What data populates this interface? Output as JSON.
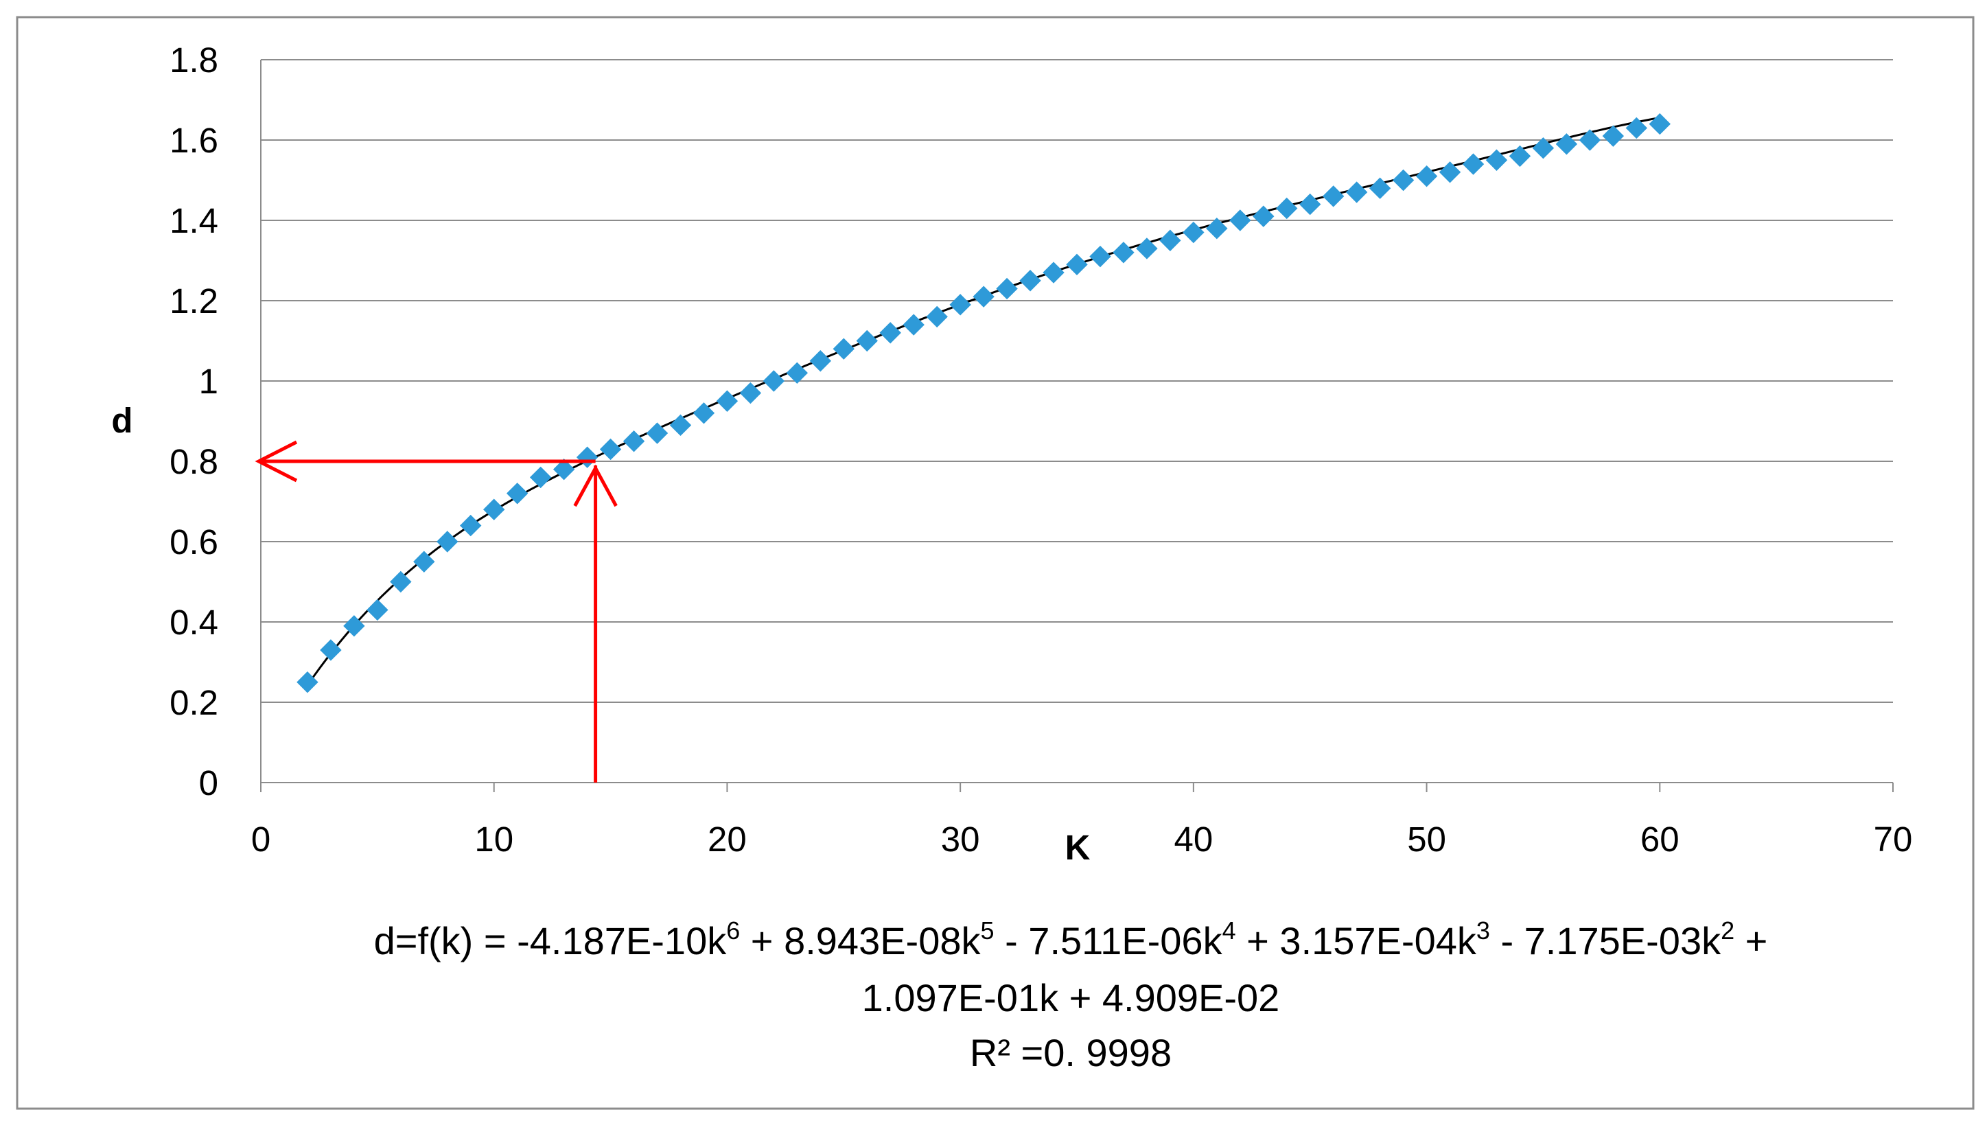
{
  "chart_data": {
    "type": "scatter",
    "title": "",
    "xlabel": "K",
    "ylabel": "d",
    "xlim": [
      0,
      70
    ],
    "ylim": [
      0,
      1.8
    ],
    "x_ticks": [
      "0",
      "10",
      "20",
      "30",
      "40",
      "50",
      "60",
      "70"
    ],
    "y_ticks": [
      "0",
      "0.2",
      "0.4",
      "0.6",
      "0.8",
      "1",
      "1.2",
      "1.4",
      "1.6",
      "1.8"
    ],
    "grid": true,
    "legend": "none",
    "series": [
      {
        "marker": "diamond",
        "color": "#2E9AD8",
        "x": [
          2,
          3,
          4,
          5,
          6,
          7,
          8,
          9,
          10,
          11,
          12,
          13,
          14,
          15,
          16,
          17,
          18,
          19,
          20,
          21,
          22,
          23,
          24,
          25,
          26,
          27,
          28,
          29,
          30,
          31,
          32,
          33,
          34,
          35,
          36,
          37,
          38,
          39,
          40,
          41,
          42,
          43,
          44,
          45,
          46,
          47,
          48,
          49,
          50,
          51,
          52,
          53,
          54,
          55,
          56,
          57,
          58,
          59,
          60
        ],
        "y": [
          0.25,
          0.33,
          0.39,
          0.43,
          0.5,
          0.55,
          0.6,
          0.64,
          0.68,
          0.72,
          0.76,
          0.78,
          0.81,
          0.83,
          0.85,
          0.87,
          0.89,
          0.92,
          0.95,
          0.97,
          1.0,
          1.02,
          1.05,
          1.08,
          1.1,
          1.12,
          1.14,
          1.16,
          1.19,
          1.21,
          1.23,
          1.25,
          1.27,
          1.29,
          1.31,
          1.32,
          1.33,
          1.35,
          1.37,
          1.38,
          1.4,
          1.41,
          1.43,
          1.44,
          1.46,
          1.47,
          1.48,
          1.5,
          1.51,
          1.52,
          1.54,
          1.55,
          1.56,
          1.58,
          1.59,
          1.6,
          1.61,
          1.63,
          1.64
        ]
      }
    ],
    "trendline": {
      "type": "polynomial",
      "order": 6,
      "color": "#000000",
      "coefficients": [
        -4.187e-10,
        8.943e-08,
        -7.511e-06,
        0.0003157,
        -0.007175,
        0.1097,
        0.04909
      ]
    },
    "annotations": {
      "color": "#FF0000",
      "k_value": 14,
      "d_value": 0.8
    },
    "equation": {
      "prefix": "d=f(k) = -4.187E-10k",
      "e6": "6",
      "t1": " + 8.943E-08k",
      "e5": "5",
      "t2": " - 7.511E-06k",
      "e4": "4",
      "t3": " + 3.157E-04k",
      "e3": "3",
      "t4": " - 7.175E-03k",
      "e2": "2",
      "t5": " +",
      "line2": "1.097E-01k + 4.909E-02",
      "line3": "R² =0. 9998"
    }
  }
}
